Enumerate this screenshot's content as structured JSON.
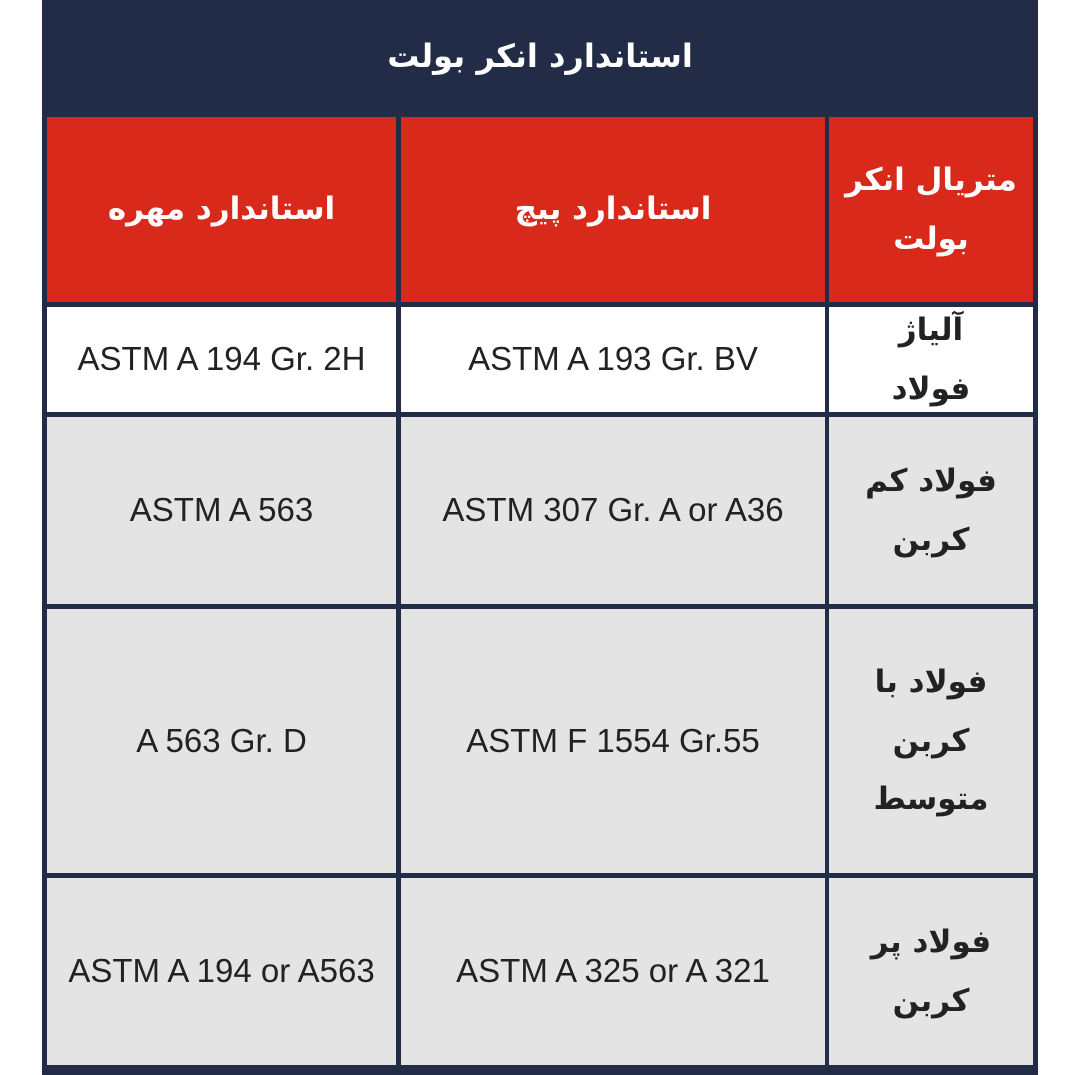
{
  "header": {
    "title": "استاندارد انکر بولت"
  },
  "table": {
    "columns": [
      "متریال انکر بولت",
      "استاندارد پیچ",
      "استاندارد مهره"
    ],
    "rows": [
      [
        "آلیاژ فولاد",
        "ASTM A 193 Gr. BV",
        "ASTM A 194 Gr. 2H"
      ],
      [
        "فولاد کم کربن",
        "ASTM 307 Gr. A or A36",
        "ASTM A 563"
      ],
      [
        "فولاد با کربن متوسط",
        "ASTM F 1554 Gr.55",
        "A 563 Gr. D"
      ],
      [
        "فولاد پر کربن",
        "ASTM A 325 or A 321",
        "ASTM A 194 or A563"
      ]
    ]
  }
}
